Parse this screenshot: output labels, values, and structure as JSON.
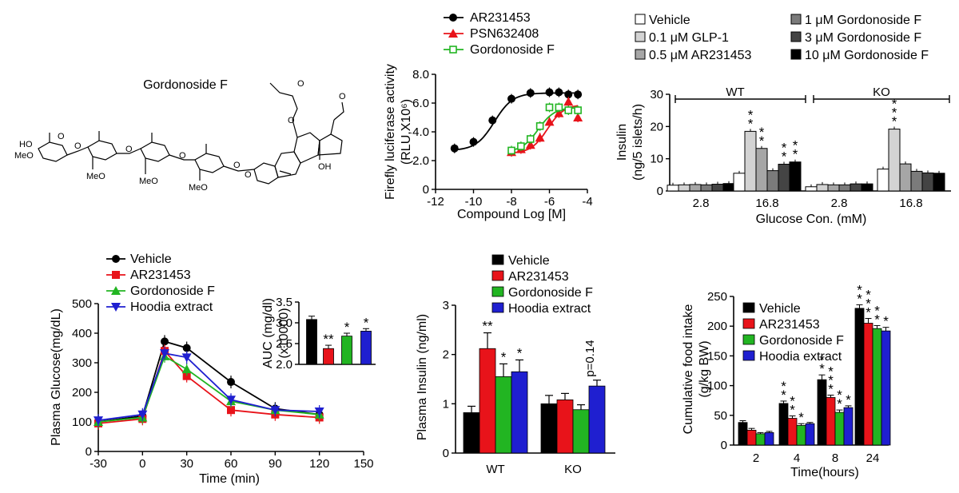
{
  "structure": {
    "title": "Gordonoside F",
    "atom_labels": [
      "HO",
      "MeO",
      "MeO",
      "MeO",
      "MeO",
      "OH",
      "O",
      "O",
      "O",
      "O",
      "O",
      "O",
      "O",
      "O",
      "O"
    ]
  },
  "chart_data": [
    {
      "id": "luciferase",
      "type": "line",
      "xlabel": "Compound  Log [M]",
      "ylabel": "Firefly luciferase activity (RLU,X10⁶)",
      "xlim": [
        -12,
        -4
      ],
      "ylim": [
        0,
        8
      ],
      "xticks": [
        "-12",
        "-10",
        "-8",
        "-6",
        "-4"
      ],
      "yticks": [
        "0",
        "2.0",
        "4.0",
        "6.0",
        "8.0"
      ],
      "legend": "top-left",
      "series": [
        {
          "name": "AR231453",
          "color": "#000000",
          "marker": "circle",
          "x": [
            -11,
            -10,
            -9,
            -8,
            -7,
            -6,
            -5.5,
            -5,
            -4.5
          ],
          "y": [
            2.85,
            3.3,
            4.8,
            6.3,
            6.7,
            6.75,
            6.75,
            6.6,
            6.6
          ]
        },
        {
          "name": "PSN632408",
          "color": "#e8131a",
          "marker": "triangle",
          "x": [
            -8,
            -7.5,
            -7,
            -6.5,
            -6,
            -5.5,
            -5,
            -4.5
          ],
          "y": [
            2.6,
            2.8,
            3.1,
            3.6,
            4.7,
            5.3,
            6.1,
            5.0
          ]
        },
        {
          "name": "Gordonoside F",
          "color": "#22b522",
          "marker": "square-open",
          "x": [
            -8,
            -7.5,
            -7,
            -6.5,
            -6,
            -5.5,
            -5,
            -4.5
          ],
          "y": [
            2.7,
            3.0,
            3.5,
            4.4,
            5.7,
            5.7,
            5.5,
            5.5
          ]
        }
      ]
    },
    {
      "id": "islet-insulin",
      "type": "bar",
      "xlabel": "Glucose Con. (mM)",
      "ylabel": "Insulin (ng/5 islets/h)",
      "ylim": [
        0,
        30
      ],
      "yticks": [
        "0",
        "10",
        "20",
        "30"
      ],
      "groups": [
        "2.8",
        "16.8",
        "2.8",
        "16.8"
      ],
      "genotypes": [
        "WT",
        "KO"
      ],
      "series": [
        {
          "name": "Vehicle",
          "color": "#ffffff",
          "values": [
            1.8,
            5.5,
            1.3,
            6.8
          ]
        },
        {
          "name": "0.1 μM GLP-1",
          "color": "#d3d3d3",
          "values": [
            1.9,
            18.5,
            2.0,
            19.2
          ]
        },
        {
          "name": "0.5 μM AR231453",
          "color": "#a6a6a6",
          "values": [
            2.0,
            13.2,
            1.9,
            8.4
          ]
        },
        {
          "name": "1 μM Gordonoside F",
          "color": "#7b7b7b",
          "values": [
            1.9,
            6.3,
            1.9,
            6.1
          ]
        },
        {
          "name": "3 μM Gordonoside F",
          "color": "#444444",
          "values": [
            2.1,
            8.3,
            2.2,
            5.6
          ]
        },
        {
          "name": "10 μM Gordonoside F",
          "color": "#000000",
          "values": [
            2.3,
            9.0,
            2.2,
            5.5
          ]
        }
      ],
      "annotations": {
        "wt_168": [
          "**",
          "**",
          "",
          "**",
          "**"
        ],
        "ko_168": [
          "***"
        ]
      }
    },
    {
      "id": "plasma-glucose",
      "type": "line",
      "xlabel": "Time (min)",
      "ylabel": "Plasma Glucose(mg/dL)",
      "xlim": [
        -30,
        150
      ],
      "ylim": [
        0,
        500
      ],
      "xticks": [
        "-30",
        "0",
        "30",
        "60",
        "90",
        "120",
        "150"
      ],
      "yticks": [
        "0",
        "100",
        "200",
        "300",
        "400",
        "500"
      ],
      "legend": "top-left",
      "x": [
        -30,
        0,
        15,
        30,
        60,
        90,
        120
      ],
      "series": [
        {
          "name": "Vehicle",
          "color": "#000000",
          "marker": "circle",
          "values": [
            100,
            120,
            372,
            350,
            235,
            145,
            125
          ]
        },
        {
          "name": "AR231453",
          "color": "#e8131a",
          "marker": "square",
          "values": [
            95,
            110,
            340,
            255,
            140,
            125,
            115
          ]
        },
        {
          "name": "Gordonoside F",
          "color": "#22b522",
          "marker": "triangle",
          "values": [
            100,
            115,
            322,
            278,
            170,
            140,
            125
          ]
        },
        {
          "name": "Hoodia extract",
          "color": "#1f1fd0",
          "marker": "triangle-down",
          "values": [
            105,
            125,
            332,
            318,
            175,
            140,
            135
          ]
        }
      ]
    },
    {
      "id": "auc-inset",
      "type": "bar",
      "ylabel": "AUC (mg/dl)",
      "ylabel2": "(x10000)",
      "ylim": [
        2.0,
        3.5
      ],
      "yticks": [
        "2.0",
        "2.5",
        "3.0",
        "3.5"
      ],
      "categories": [
        "Vehicle",
        "AR231453",
        "Gordonoside F",
        "Hoodia extract"
      ],
      "colors": [
        "#000000",
        "#e8131a",
        "#22b522",
        "#1f1fd0"
      ],
      "values": [
        3.08,
        2.38,
        2.68,
        2.8
      ],
      "errors": [
        0.08,
        0.08,
        0.07,
        0.06
      ],
      "annotations": [
        "",
        "**",
        "*",
        "*"
      ]
    },
    {
      "id": "plasma-insulin",
      "type": "bar",
      "ylabel": "Plasma Insulin (ng/ml)",
      "ylim": [
        0,
        3
      ],
      "yticks": [
        "0",
        "1",
        "2",
        "3"
      ],
      "categories": [
        "WT",
        "KO"
      ],
      "legend": "top-left",
      "series": [
        {
          "name": "Vehicle",
          "color": "#000000",
          "values": [
            0.82,
            1.0
          ],
          "errors": [
            0.13,
            0.17
          ]
        },
        {
          "name": "AR231453",
          "color": "#e8131a",
          "values": [
            2.12,
            1.08
          ],
          "errors": [
            0.32,
            0.13
          ]
        },
        {
          "name": "Gordonoside F",
          "color": "#22b522",
          "values": [
            1.55,
            0.88
          ],
          "errors": [
            0.26,
            0.1
          ]
        },
        {
          "name": "Hoodia extract",
          "color": "#1f1fd0",
          "values": [
            1.65,
            1.36
          ],
          "errors": [
            0.24,
            0.12
          ]
        }
      ],
      "annotations": {
        "WT": [
          "",
          "**",
          "*",
          "*"
        ],
        "KO_note": "p=0.14"
      }
    },
    {
      "id": "food-intake",
      "type": "bar",
      "xlabel": "Time(hours)",
      "ylabel": "Cumulative food intake",
      "ylabel2": "(g/kg BW)",
      "ylim": [
        0,
        250
      ],
      "yticks": [
        "0",
        "50",
        "100",
        "150",
        "200",
        "250"
      ],
      "categories": [
        "2",
        "4",
        "8",
        "24"
      ],
      "legend": "top-left",
      "series": [
        {
          "name": "Vehicle",
          "color": "#000000",
          "values": [
            38,
            70,
            110,
            230
          ],
          "errors": [
            3,
            4,
            8,
            6
          ]
        },
        {
          "name": "AR231453",
          "color": "#e8131a",
          "values": [
            25,
            45,
            80,
            205
          ],
          "errors": [
            3,
            4,
            4,
            8
          ]
        },
        {
          "name": "Gordonoside F",
          "color": "#22b522",
          "values": [
            19,
            33,
            55,
            196
          ],
          "errors": [
            2,
            3,
            4,
            5
          ]
        },
        {
          "name": "Hoodia extract",
          "color": "#1f1fd0",
          "values": [
            21,
            36,
            63,
            192
          ],
          "errors": [
            2,
            2,
            3,
            6
          ]
        }
      ],
      "annotations": [
        [
          "",
          "**",
          "**",
          "**"
        ],
        [
          "",
          "**",
          "***",
          "***"
        ],
        [
          "",
          "*",
          "**",
          "**"
        ],
        [
          "",
          "",
          "*",
          "*"
        ]
      ]
    }
  ]
}
